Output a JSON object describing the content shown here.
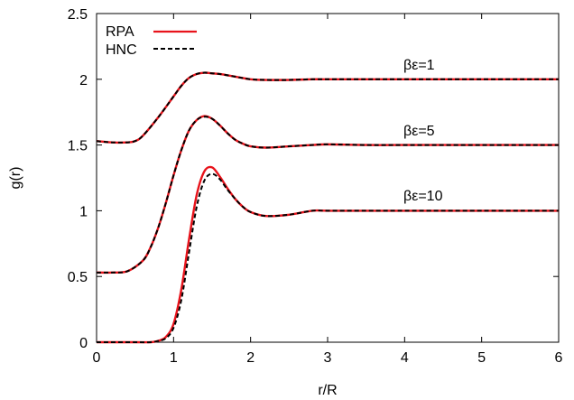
{
  "chart_data": {
    "type": "line",
    "title": "",
    "xlabel": "r/R",
    "ylabel": "g(r)",
    "xlim": [
      0,
      6
    ],
    "ylim": [
      0,
      2.5
    ],
    "xticks": [
      "0",
      "1",
      "2",
      "3",
      "4",
      "5",
      "6"
    ],
    "yticks": [
      "0",
      "0.5",
      "1",
      "1.5",
      "2",
      "2.5"
    ],
    "grid": false,
    "legend_position": "top-left",
    "series": [
      {
        "name": "RPA",
        "color": "#e8131b",
        "style": "solid",
        "group": "βε=1",
        "x": [
          0,
          0.2,
          0.4,
          0.5,
          0.6,
          0.8,
          1.0,
          1.1,
          1.2,
          1.3,
          1.4,
          1.5,
          1.6,
          1.8,
          2.0,
          2.2,
          2.5,
          2.8,
          3.0,
          3.5,
          4.0,
          5.0,
          6.0
        ],
        "y": [
          1.53,
          1.52,
          1.52,
          1.53,
          1.57,
          1.71,
          1.87,
          1.95,
          2.01,
          2.04,
          2.05,
          2.045,
          2.04,
          2.02,
          2.0,
          1.995,
          1.995,
          2.0,
          2.0,
          2.0,
          2.0,
          2.0,
          2.0
        ]
      },
      {
        "name": "HNC",
        "color": "#000000",
        "style": "dashed",
        "group": "βε=1",
        "x": [
          0,
          0.2,
          0.4,
          0.5,
          0.6,
          0.8,
          1.0,
          1.1,
          1.2,
          1.3,
          1.4,
          1.5,
          1.6,
          1.8,
          2.0,
          2.2,
          2.5,
          2.8,
          3.0,
          3.5,
          4.0,
          5.0,
          6.0
        ],
        "y": [
          1.53,
          1.52,
          1.52,
          1.53,
          1.57,
          1.71,
          1.87,
          1.95,
          2.01,
          2.04,
          2.05,
          2.045,
          2.04,
          2.02,
          2.0,
          1.995,
          1.995,
          2.0,
          2.0,
          2.0,
          2.0,
          2.0,
          2.0
        ]
      },
      {
        "name": "RPA",
        "color": "#e8131b",
        "style": "solid",
        "group": "βε=5",
        "x": [
          0,
          0.2,
          0.4,
          0.6,
          0.7,
          0.8,
          0.9,
          1.0,
          1.1,
          1.2,
          1.3,
          1.4,
          1.5,
          1.6,
          1.7,
          1.8,
          1.9,
          2.0,
          2.2,
          2.5,
          2.8,
          3.0,
          3.5,
          4.0,
          5.0,
          6.0
        ],
        "y": [
          0.53,
          0.53,
          0.54,
          0.62,
          0.72,
          0.87,
          1.06,
          1.27,
          1.46,
          1.61,
          1.69,
          1.72,
          1.7,
          1.65,
          1.59,
          1.54,
          1.51,
          1.49,
          1.48,
          1.49,
          1.5,
          1.505,
          1.5,
          1.5,
          1.5,
          1.5
        ]
      },
      {
        "name": "HNC",
        "color": "#000000",
        "style": "dashed",
        "group": "βε=5",
        "x": [
          0,
          0.2,
          0.4,
          0.6,
          0.7,
          0.8,
          0.9,
          1.0,
          1.1,
          1.2,
          1.3,
          1.4,
          1.5,
          1.6,
          1.7,
          1.8,
          1.9,
          2.0,
          2.2,
          2.5,
          2.8,
          3.0,
          3.5,
          4.0,
          5.0,
          6.0
        ],
        "y": [
          0.53,
          0.53,
          0.54,
          0.62,
          0.72,
          0.87,
          1.06,
          1.27,
          1.46,
          1.61,
          1.69,
          1.715,
          1.7,
          1.65,
          1.59,
          1.54,
          1.51,
          1.49,
          1.48,
          1.49,
          1.5,
          1.505,
          1.5,
          1.5,
          1.5,
          1.5
        ]
      },
      {
        "name": "RPA",
        "color": "#e8131b",
        "style": "solid",
        "group": "βε=10",
        "x": [
          0,
          0.5,
          0.7,
          0.8,
          0.9,
          1.0,
          1.1,
          1.2,
          1.3,
          1.4,
          1.5,
          1.6,
          1.7,
          1.8,
          1.9,
          2.0,
          2.2,
          2.5,
          2.8,
          3.0,
          3.5,
          4.0,
          5.0,
          6.0
        ],
        "y": [
          0.0,
          0.0,
          0.0,
          0.01,
          0.04,
          0.14,
          0.4,
          0.78,
          1.12,
          1.3,
          1.33,
          1.26,
          1.17,
          1.09,
          1.03,
          0.99,
          0.96,
          0.97,
          1.0,
          1.0,
          1.0,
          1.0,
          1.0,
          1.0
        ]
      },
      {
        "name": "HNC",
        "color": "#000000",
        "style": "dashed",
        "group": "βε=10",
        "x": [
          0,
          0.5,
          0.7,
          0.8,
          0.9,
          1.0,
          1.1,
          1.2,
          1.3,
          1.4,
          1.5,
          1.6,
          1.7,
          1.8,
          1.9,
          2.0,
          2.2,
          2.5,
          2.8,
          3.0,
          3.5,
          4.0,
          5.0,
          6.0
        ],
        "y": [
          0.0,
          0.0,
          0.0,
          0.01,
          0.03,
          0.11,
          0.32,
          0.68,
          1.03,
          1.23,
          1.28,
          1.24,
          1.16,
          1.09,
          1.03,
          0.99,
          0.96,
          0.97,
          1.0,
          1.0,
          1.0,
          1.0,
          1.0,
          1.0
        ]
      }
    ],
    "legend": [
      {
        "label": "RPA",
        "color": "#e8131b",
        "style": "solid"
      },
      {
        "label": "HNC",
        "color": "#000000",
        "style": "dashed"
      }
    ],
    "annotations": [
      {
        "text": "βε=1",
        "x": 5.0,
        "y": 2.09
      },
      {
        "text": "βε=5",
        "x": 5.0,
        "y": 1.59
      },
      {
        "text": "βε=10",
        "x": 5.0,
        "y": 1.09
      }
    ]
  }
}
